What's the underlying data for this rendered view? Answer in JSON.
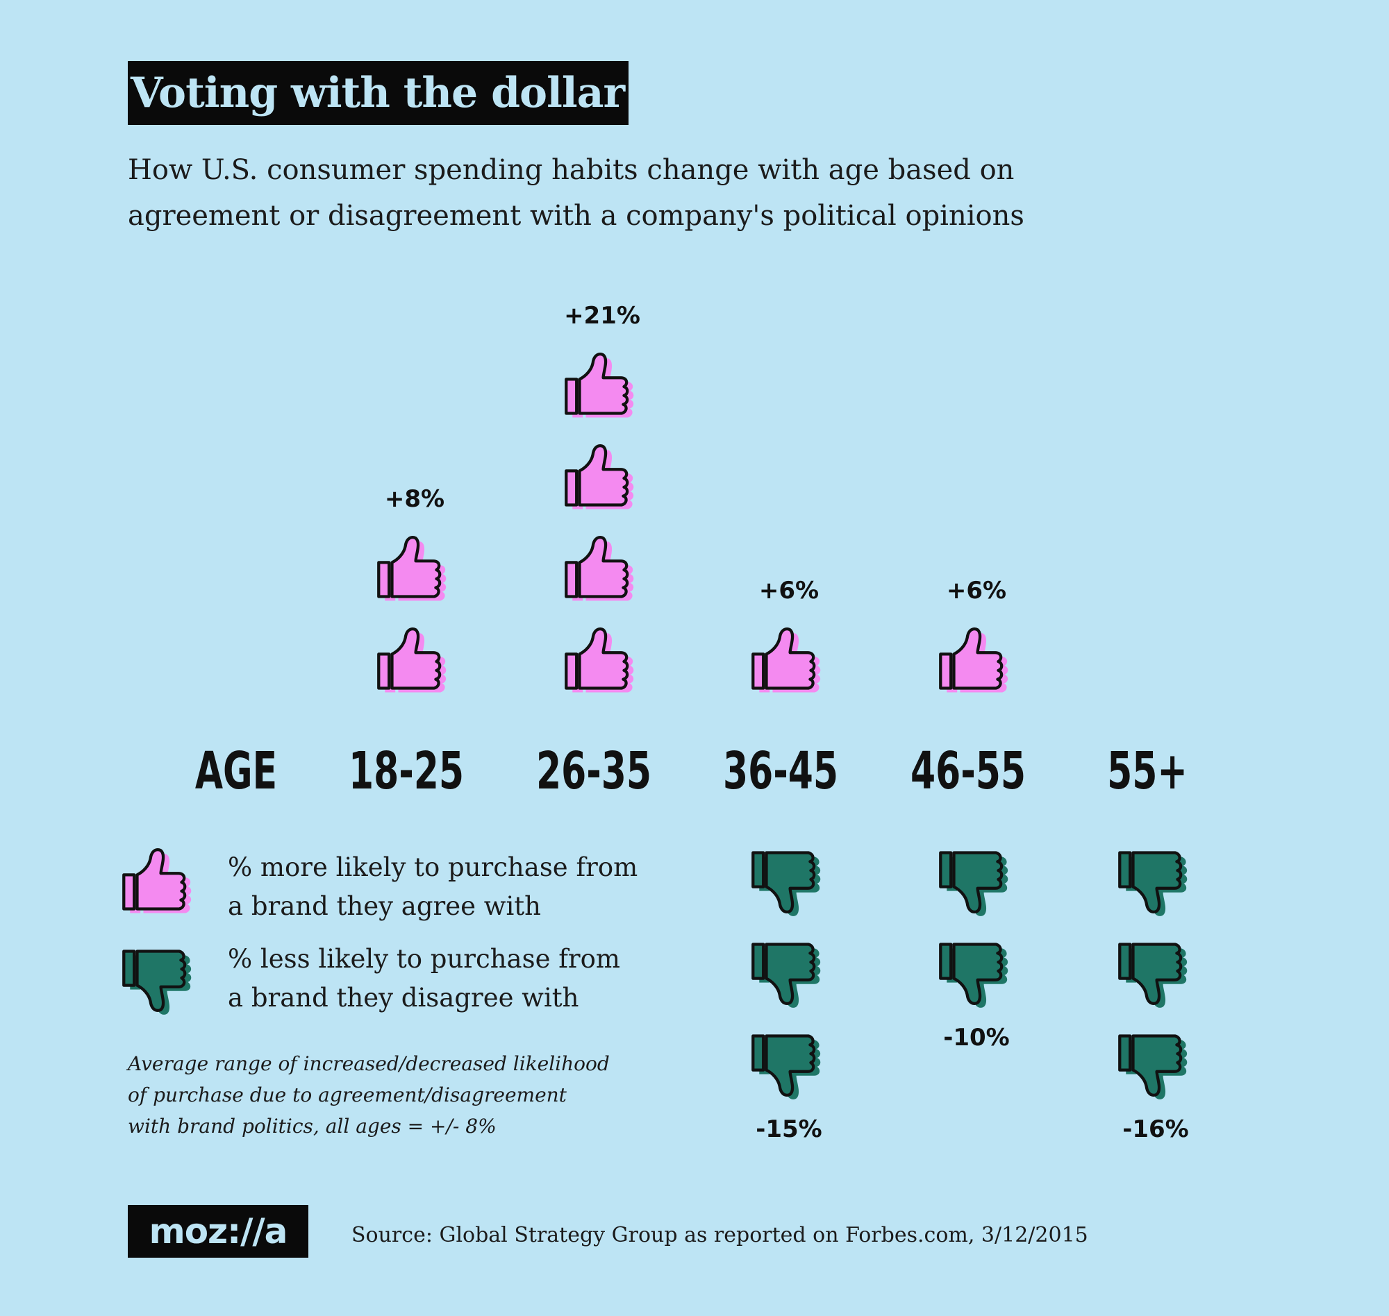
{
  "header": {
    "title": "Voting with the dollar",
    "subtitle_line1": "How U.S. consumer spending habits change with age based on",
    "subtitle_line2": "agreement or disagreement with a company's political opinions"
  },
  "legend": {
    "thumbs_up_line1": "% more likely to purchase from",
    "thumbs_up_line2": "a brand they agree with",
    "thumbs_down_line1": "% less likely to purchase from",
    "thumbs_down_line2": "a brand they disagree with",
    "icons": {
      "up": "thumbs-up-icon",
      "down": "thumbs-down-icon"
    }
  },
  "note": {
    "line1": "Average range of increased/decreased likelihood",
    "line2": "of purchase due to agreement/disagreement",
    "line3": "with brand politics, all ages = +/- 8%"
  },
  "footer": {
    "logo": "moz://a",
    "source": "Source: Global Strategy Group as reported on Forbes.com, 3/12/2015"
  },
  "colors": {
    "background": "#bde4f4",
    "thumbs_up": "#f48af0",
    "thumbs_down": "#1f7666",
    "text": "#111111"
  },
  "chart_data": {
    "type": "pictograph",
    "axis_label": "AGE",
    "categories": [
      "18-25",
      "26-35",
      "36-45",
      "46-55",
      "55+"
    ],
    "series": [
      {
        "name": "% more likely to purchase from a brand they agree with",
        "values": [
          8,
          21,
          6,
          6,
          null
        ],
        "labels": [
          "+8%",
          "+21%",
          "+6%",
          "+6%",
          ""
        ],
        "icon_counts": [
          2,
          4,
          1,
          1,
          0
        ]
      },
      {
        "name": "% less likely to purchase from a brand they disagree with",
        "values": [
          null,
          null,
          -15,
          -10,
          -16
        ],
        "labels": [
          "",
          "",
          "-15%",
          "-10%",
          "-16%"
        ],
        "icon_counts": [
          0,
          0,
          3,
          2,
          3
        ]
      }
    ]
  }
}
